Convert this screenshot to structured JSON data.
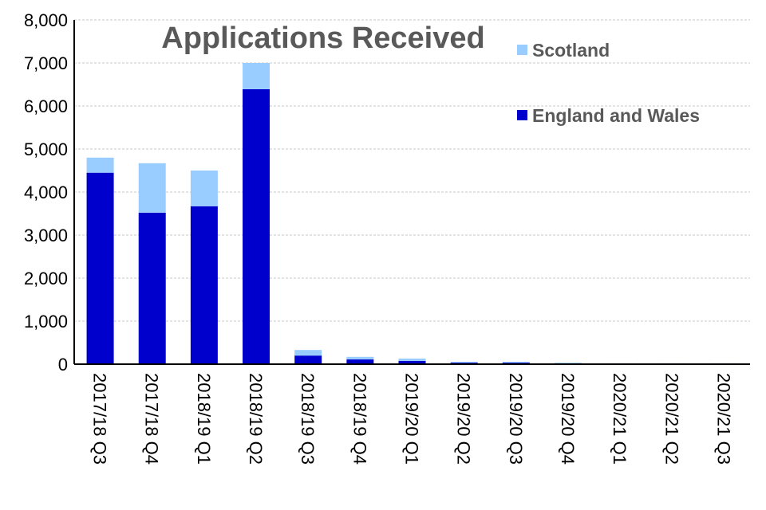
{
  "chart_data": {
    "type": "bar",
    "stacked": true,
    "title": "Applications Received",
    "categories": [
      "2017/18 Q3",
      "2017/18 Q4",
      "2018/19 Q1",
      "2018/19 Q2",
      "2018/19 Q3",
      "2018/19 Q4",
      "2019/20 Q1",
      "2019/20 Q2",
      "2019/20 Q3",
      "2019/20 Q4",
      "2020/21 Q1",
      "2020/21 Q2",
      "2020/21 Q3"
    ],
    "series": [
      {
        "name": "England and Wales",
        "color": "#0000CC",
        "values": [
          4450,
          3520,
          3670,
          6390,
          200,
          110,
          75,
          35,
          35,
          20,
          5,
          5,
          5
        ]
      },
      {
        "name": "Scotland",
        "color": "#99CCFF",
        "values": [
          350,
          1150,
          830,
          610,
          130,
          60,
          55,
          20,
          20,
          15,
          15,
          15,
          15
        ]
      }
    ],
    "yticks": [
      "0",
      "1,000",
      "2,000",
      "3,000",
      "4,000",
      "5,000",
      "6,000",
      "7,000",
      "8,000"
    ],
    "ylim": [
      0,
      8000
    ],
    "xlabel": "",
    "ylabel": "",
    "grid": true,
    "legend_placement": "top-right"
  }
}
